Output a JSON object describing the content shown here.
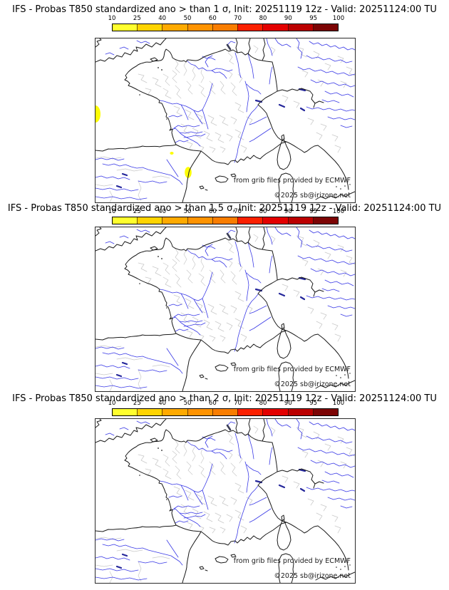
{
  "panels": [
    {
      "title": "IFS - Probas T850  standardized ano > than 1 σ, Init: 20251119 12z - Valid: 20251124:00 TU",
      "threshold_sigma": "1",
      "probability_areas": [
        {
          "location": "atlantic-west-map-edge",
          "value_percent": "10-25"
        },
        {
          "location": "ebro-valley-small-dot",
          "value_percent": "10-25"
        },
        {
          "location": "spain-east-coast-valencia",
          "value_percent": "10-25"
        }
      ]
    },
    {
      "title": "IFS - Probas T850  standardized ano > than 1.5 σ, Init: 20251119 12z - Valid: 20251124:00 TU",
      "threshold_sigma": "1.5",
      "probability_areas": []
    },
    {
      "title": "IFS - Probas T850  standardized ano > than 2 σ, Init: 20251119 12z - Valid: 20251124:00 TU",
      "threshold_sigma": "2",
      "probability_areas": []
    }
  ],
  "colorbar": {
    "ticks": [
      "10",
      "25",
      "40",
      "50",
      "60",
      "70",
      "80",
      "90",
      "95",
      "100"
    ],
    "colors": [
      "#ffff2e",
      "#ffd400",
      "#ffaa00",
      "#ff9300",
      "#f97d00",
      "#fb2000",
      "#e30000",
      "#bb0000",
      "#7c0404"
    ]
  },
  "map": {
    "region": "France and surroundings",
    "attribution_line1": "from grib files provided by ECMWF",
    "attribution_line2": "©2025 sb@irizone.net",
    "river_color": "#3a3ae6",
    "coast_color": "#1a1a1a",
    "admin_color": "#c8c8c8",
    "highlight_color": "#fdfd05"
  }
}
